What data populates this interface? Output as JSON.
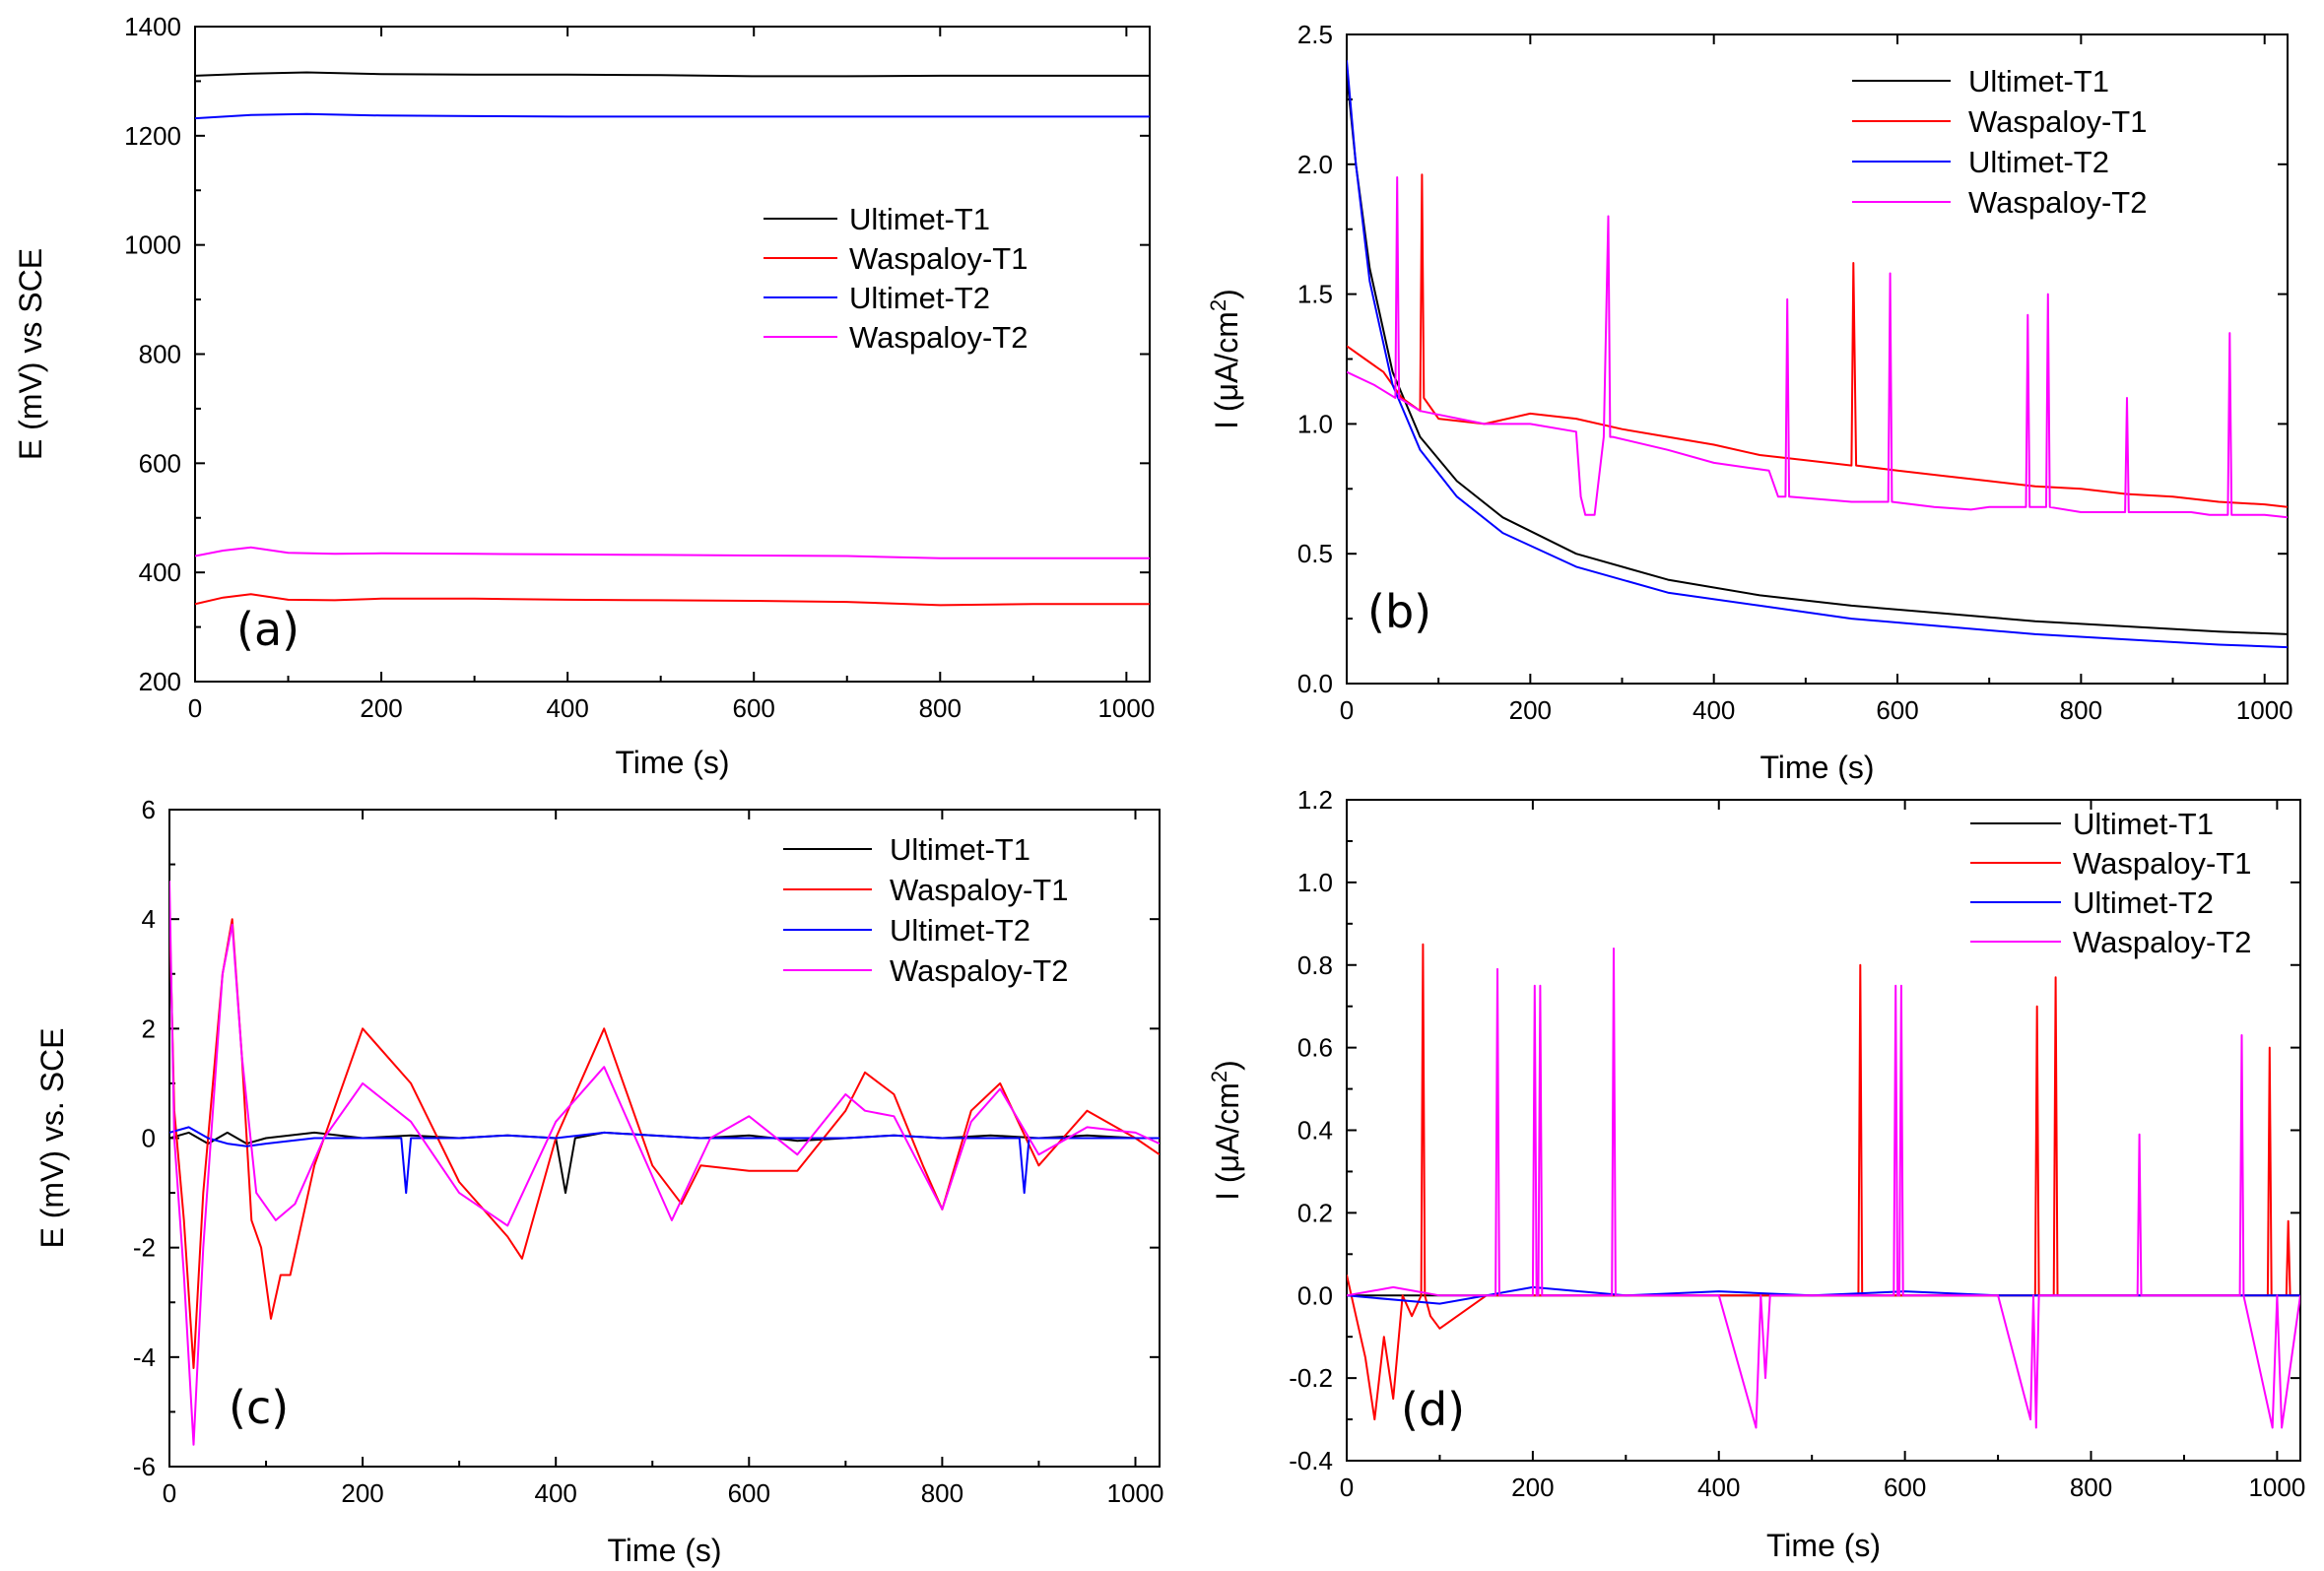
{
  "colors": {
    "Ultimet-T1": "#000000",
    "Waspaloy-T1": "#ff0000",
    "Ultimet-T2": "#0000ff",
    "Waspaloy-T2": "#ff00ff"
  },
  "chart_data": [
    {
      "id": "a",
      "type": "line",
      "panel_label": "(a)",
      "xlabel": "Time (s)",
      "ylabel": "E (mV) vs SCE",
      "xlim": [
        0,
        1025
      ],
      "ylim": [
        200,
        1400
      ],
      "xticks": [
        0,
        200,
        400,
        600,
        800,
        1000
      ],
      "yticks": [
        200,
        400,
        600,
        800,
        1000,
        1200,
        1400
      ],
      "ytick_labels": [
        "200",
        "400",
        "600",
        "800",
        "1000",
        "1200",
        "1400"
      ],
      "legend_position": "center-right",
      "legend": [
        "Ultimet-T1",
        "Waspaloy-T1",
        "Ultimet-T2",
        "Waspaloy-T2"
      ],
      "series": [
        {
          "name": "Ultimet-T1",
          "x": [
            0,
            60,
            120,
            200,
            300,
            400,
            500,
            600,
            700,
            800,
            900,
            1025
          ],
          "y": [
            1310,
            1314,
            1316,
            1313,
            1312,
            1312,
            1311,
            1309,
            1309,
            1310,
            1310,
            1310
          ]
        },
        {
          "name": "Waspaloy-T1",
          "x": [
            0,
            30,
            60,
            100,
            150,
            200,
            300,
            400,
            500,
            600,
            700,
            800,
            900,
            1025
          ],
          "y": [
            342,
            354,
            360,
            350,
            349,
            352,
            352,
            350,
            349,
            348,
            346,
            340,
            342,
            342
          ]
        },
        {
          "name": "Ultimet-T2",
          "x": [
            0,
            60,
            120,
            200,
            300,
            400,
            500,
            600,
            700,
            800,
            900,
            1025
          ],
          "y": [
            1232,
            1238,
            1240,
            1237,
            1236,
            1235,
            1235,
            1235,
            1235,
            1235,
            1235,
            1235
          ]
        },
        {
          "name": "Waspaloy-T2",
          "x": [
            0,
            30,
            60,
            100,
            150,
            200,
            300,
            400,
            500,
            600,
            700,
            800,
            900,
            1025
          ],
          "y": [
            430,
            440,
            446,
            436,
            434,
            435,
            434,
            433,
            432,
            431,
            430,
            426,
            426,
            426
          ]
        }
      ]
    },
    {
      "id": "b",
      "type": "line",
      "panel_label": "(b)",
      "xlabel": "Time (s)",
      "ylabel": "I (μA/cm",
      "ylabel_superscript": "2",
      "ylabel_suffix": ")",
      "xlim": [
        0,
        1025
      ],
      "ylim": [
        0,
        2.5
      ],
      "xticks": [
        0,
        200,
        400,
        600,
        800,
        1000
      ],
      "yticks": [
        0,
        0.5,
        1.0,
        1.5,
        2.0,
        2.5
      ],
      "ytick_labels": [
        "0.0",
        "0.5",
        "1.0",
        "1.5",
        "2.0",
        "2.5"
      ],
      "legend_position": "top-right",
      "legend": [
        "Ultimet-T1",
        "Waspaloy-T1",
        "Ultimet-T2",
        "Waspaloy-T2"
      ],
      "series": [
        {
          "name": "Ultimet-T1",
          "x": [
            0,
            10,
            25,
            50,
            80,
            120,
            170,
            250,
            350,
            450,
            550,
            650,
            750,
            850,
            950,
            1025
          ],
          "y": [
            2.35,
            2.0,
            1.6,
            1.2,
            0.95,
            0.78,
            0.64,
            0.5,
            0.4,
            0.34,
            0.3,
            0.27,
            0.24,
            0.22,
            0.2,
            0.19
          ]
        },
        {
          "name": "Waspaloy-T1",
          "x": [
            0,
            20,
            40,
            60,
            80,
            82,
            84,
            100,
            150,
            200,
            250,
            300,
            350,
            400,
            450,
            500,
            550,
            552,
            555,
            600,
            650,
            700,
            750,
            800,
            850,
            900,
            950,
            1000,
            1025
          ],
          "y": [
            1.3,
            1.25,
            1.2,
            1.1,
            1.05,
            1.96,
            1.1,
            1.02,
            1.0,
            1.04,
            1.02,
            0.98,
            0.95,
            0.92,
            0.88,
            0.86,
            0.84,
            1.62,
            0.84,
            0.82,
            0.8,
            0.78,
            0.76,
            0.75,
            0.73,
            0.72,
            0.7,
            0.69,
            0.68
          ]
        },
        {
          "name": "Ultimet-T2",
          "x": [
            0,
            10,
            25,
            50,
            80,
            120,
            170,
            250,
            350,
            450,
            550,
            650,
            750,
            850,
            950,
            1025
          ],
          "y": [
            2.4,
            2.0,
            1.55,
            1.15,
            0.9,
            0.72,
            0.58,
            0.45,
            0.35,
            0.3,
            0.25,
            0.22,
            0.19,
            0.17,
            0.15,
            0.14
          ]
        },
        {
          "name": "Waspaloy-T2",
          "x": [
            0,
            30,
            53,
            55,
            57,
            80,
            150,
            200,
            250,
            255,
            260,
            270,
            280,
            285,
            287,
            290,
            350,
            400,
            460,
            470,
            478,
            480,
            482,
            550,
            590,
            592,
            594,
            640,
            680,
            700,
            740,
            742,
            744,
            762,
            764,
            766,
            800,
            848,
            850,
            852,
            920,
            940,
            960,
            962,
            964,
            1000,
            1025
          ],
          "y": [
            1.2,
            1.15,
            1.1,
            1.95,
            1.1,
            1.05,
            1.0,
            1.0,
            0.97,
            0.72,
            0.65,
            0.65,
            0.95,
            1.8,
            0.95,
            0.95,
            0.9,
            0.85,
            0.82,
            0.72,
            0.72,
            1.48,
            0.72,
            0.7,
            0.7,
            1.58,
            0.7,
            0.68,
            0.67,
            0.68,
            0.68,
            1.42,
            0.68,
            0.68,
            1.5,
            0.68,
            0.66,
            0.66,
            1.1,
            0.66,
            0.66,
            0.65,
            0.65,
            1.35,
            0.65,
            0.65,
            0.64
          ]
        }
      ]
    },
    {
      "id": "c",
      "type": "line",
      "panel_label": "(c)",
      "xlabel": "Time (s)",
      "ylabel": "E (mV) vs. SCE",
      "xlim": [
        0,
        1025
      ],
      "ylim": [
        -6,
        6
      ],
      "xticks": [
        0,
        200,
        400,
        600,
        800,
        1000
      ],
      "yticks": [
        -6,
        -4,
        -2,
        0,
        2,
        4,
        6
      ],
      "ytick_labels": [
        "-6",
        "-4",
        "-2",
        "0",
        "2",
        "4",
        "6"
      ],
      "legend_position": "top-right",
      "legend": [
        "Ultimet-T1",
        "Waspaloy-T1",
        "Ultimet-T2",
        "Waspaloy-T2"
      ],
      "series": [
        {
          "name": "Ultimet-T1",
          "x": [
            0,
            20,
            40,
            60,
            80,
            100,
            150,
            200,
            250,
            300,
            350,
            400,
            410,
            420,
            450,
            500,
            550,
            600,
            650,
            700,
            750,
            800,
            850,
            900,
            950,
            1000,
            1025
          ],
          "y": [
            0,
            0.1,
            -0.1,
            0.1,
            -0.1,
            0.0,
            0.1,
            0.0,
            0.05,
            0.0,
            0.05,
            0.0,
            -1.0,
            0.0,
            0.1,
            0.05,
            0.0,
            0.05,
            -0.05,
            0.0,
            0.05,
            0.0,
            0.05,
            0.0,
            0.05,
            0.0,
            0.0
          ]
        },
        {
          "name": "Waspaloy-T1",
          "x": [
            0,
            5,
            15,
            25,
            35,
            45,
            55,
            65,
            75,
            85,
            95,
            105,
            115,
            125,
            150,
            200,
            250,
            300,
            350,
            365,
            400,
            450,
            500,
            530,
            550,
            600,
            650,
            700,
            720,
            750,
            780,
            800,
            830,
            860,
            900,
            950,
            1000,
            1025
          ],
          "y": [
            4.2,
            0.5,
            -1.5,
            -4.2,
            -1.0,
            1.0,
            3.0,
            4.0,
            1.5,
            -1.5,
            -2.0,
            -3.3,
            -2.5,
            -2.5,
            -0.5,
            2.0,
            1.0,
            -0.8,
            -1.8,
            -2.2,
            0.0,
            2.0,
            -0.5,
            -1.2,
            -0.5,
            -0.6,
            -0.6,
            0.5,
            1.2,
            0.8,
            -0.5,
            -1.3,
            0.5,
            1.0,
            -0.5,
            0.5,
            0.0,
            -0.3
          ]
        },
        {
          "name": "Ultimet-T2",
          "x": [
            0,
            20,
            40,
            60,
            80,
            100,
            150,
            200,
            240,
            245,
            250,
            300,
            350,
            400,
            450,
            500,
            550,
            600,
            650,
            700,
            750,
            800,
            850,
            880,
            885,
            890,
            950,
            1000,
            1025
          ],
          "y": [
            0.1,
            0.2,
            0.0,
            -0.1,
            -0.15,
            -0.1,
            0.0,
            0.0,
            0.0,
            -1.0,
            0.0,
            0.0,
            0.05,
            0.0,
            0.1,
            0.05,
            0.0,
            0.0,
            0.0,
            0.0,
            0.05,
            0.0,
            0.0,
            0.0,
            -1.0,
            0.0,
            0.0,
            0.0,
            0.0
          ]
        },
        {
          "name": "Waspaloy-T2",
          "x": [
            0,
            5,
            15,
            25,
            35,
            45,
            55,
            65,
            75,
            90,
            110,
            130,
            160,
            200,
            250,
            300,
            350,
            400,
            450,
            500,
            520,
            560,
            600,
            650,
            700,
            720,
            750,
            800,
            830,
            860,
            900,
            950,
            1000,
            1025
          ],
          "y": [
            4.7,
            0.0,
            -2.5,
            -5.6,
            -2.0,
            0.5,
            3.0,
            3.9,
            1.5,
            -1.0,
            -1.5,
            -1.2,
            0.0,
            1.0,
            0.3,
            -1.0,
            -1.6,
            0.3,
            1.3,
            -0.7,
            -1.5,
            0.0,
            0.4,
            -0.3,
            0.8,
            0.5,
            0.4,
            -1.3,
            0.3,
            0.9,
            -0.3,
            0.2,
            0.1,
            -0.1
          ]
        }
      ]
    },
    {
      "id": "d",
      "type": "line",
      "panel_label": "(d)",
      "xlabel": "Time (s)",
      "ylabel": "I (μA/cm",
      "ylabel_superscript": "2",
      "ylabel_suffix": ")",
      "xlim": [
        0,
        1025
      ],
      "ylim": [
        -0.4,
        1.2
      ],
      "xticks": [
        0,
        200,
        400,
        600,
        800,
        1000
      ],
      "yticks": [
        -0.4,
        -0.2,
        0.0,
        0.2,
        0.4,
        0.6,
        0.8,
        1.0,
        1.2
      ],
      "ytick_labels": [
        "-0.4",
        "-0.2",
        "0.0",
        "0.2",
        "0.4",
        "0.6",
        "0.8",
        "1.0",
        "1.2"
      ],
      "legend_position": "top-right",
      "legend": [
        "Ultimet-T1",
        "Waspaloy-T1",
        "Ultimet-T2",
        "Waspaloy-T2"
      ],
      "series": [
        {
          "name": "Ultimet-T1",
          "x": [
            0,
            100,
            200,
            300,
            400,
            500,
            600,
            700,
            800,
            900,
            1025
          ],
          "y": [
            0.0,
            0.0,
            0.0,
            0.0,
            0.0,
            0.0,
            0.0,
            0.0,
            0.0,
            0.0,
            0.0
          ]
        },
        {
          "name": "Waspaloy-T1",
          "x": [
            0,
            10,
            20,
            30,
            40,
            50,
            60,
            70,
            80,
            82,
            84,
            90,
            100,
            150,
            200,
            300,
            400,
            500,
            550,
            552,
            554,
            600,
            700,
            740,
            742,
            744,
            760,
            762,
            764,
            800,
            900,
            990,
            992,
            994,
            1010,
            1012,
            1014,
            1025
          ],
          "y": [
            0.05,
            -0.05,
            -0.15,
            -0.3,
            -0.1,
            -0.25,
            0.0,
            -0.05,
            0.0,
            0.85,
            0.0,
            -0.05,
            -0.08,
            0.0,
            0.0,
            0.0,
            0.0,
            0.0,
            0.0,
            0.8,
            0.0,
            0.0,
            0.0,
            0.0,
            0.7,
            0.0,
            0.0,
            0.77,
            0.0,
            0.0,
            0.0,
            0.0,
            0.6,
            0.0,
            0.0,
            0.18,
            0.0,
            0.0
          ]
        },
        {
          "name": "Ultimet-T2",
          "x": [
            0,
            100,
            200,
            300,
            400,
            500,
            600,
            700,
            800,
            900,
            1025
          ],
          "y": [
            0.0,
            -0.02,
            0.02,
            0.0,
            0.01,
            0.0,
            0.01,
            0.0,
            0.0,
            0.0,
            0.0
          ]
        },
        {
          "name": "Waspaloy-T2",
          "x": [
            0,
            50,
            100,
            160,
            162,
            164,
            200,
            202,
            204,
            206,
            208,
            210,
            285,
            287,
            289,
            350,
            400,
            440,
            445,
            450,
            455,
            500,
            588,
            590,
            592,
            594,
            596,
            598,
            650,
            700,
            735,
            738,
            741,
            744,
            800,
            850,
            852,
            854,
            900,
            960,
            962,
            964,
            995,
            1000,
            1005,
            1025
          ],
          "y": [
            0.0,
            0.02,
            0.0,
            0.0,
            0.79,
            0.0,
            0.0,
            0.75,
            0.0,
            0.0,
            0.75,
            0.0,
            0.0,
            0.84,
            0.0,
            0.0,
            0.0,
            -0.32,
            0.0,
            -0.2,
            0.0,
            0.0,
            0.0,
            0.75,
            0.0,
            0.0,
            0.75,
            0.0,
            0.0,
            0.0,
            -0.3,
            0.0,
            -0.32,
            0.0,
            0.0,
            0.0,
            0.39,
            0.0,
            0.0,
            0.0,
            0.63,
            0.0,
            -0.32,
            0.0,
            -0.32,
            0.0
          ]
        }
      ]
    }
  ]
}
